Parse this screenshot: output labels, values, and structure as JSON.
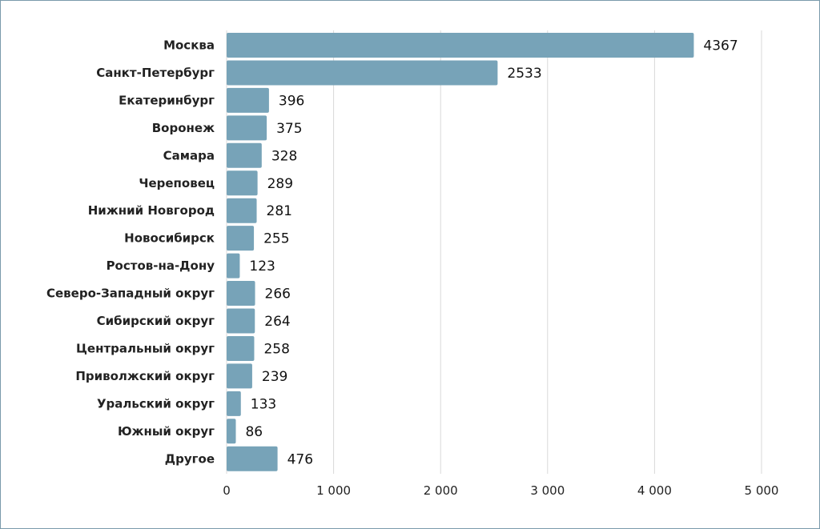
{
  "chart_data": {
    "type": "bar",
    "orientation": "horizontal",
    "categories": [
      "Москва",
      "Санкт-Петербург",
      "Екатеринбург",
      "Воронеж",
      "Самара",
      "Череповец",
      "Нижний Новгород",
      "Новосибирск",
      "Ростов-на-Дону",
      "Северо-Западный округ",
      "Сибирский округ",
      "Центральный округ",
      "Приволжский округ",
      "Уральский округ",
      "Южный округ",
      "Другое"
    ],
    "values": [
      4367,
      2533,
      396,
      375,
      328,
      289,
      281,
      255,
      123,
      266,
      264,
      258,
      239,
      133,
      86,
      476
    ],
    "value_labels": [
      "4367",
      "2533",
      "396",
      "375",
      "328",
      "289",
      "281",
      "255",
      "123",
      "266",
      "264",
      "258",
      "239",
      "133",
      "86",
      "476"
    ],
    "xlim": [
      0,
      5000
    ],
    "xticks": [
      0,
      1000,
      2000,
      3000,
      4000,
      5000
    ],
    "xtick_labels": [
      "0",
      "1 000",
      "2 000",
      "3 000",
      "4 000",
      "5 000"
    ],
    "grid": "vertical",
    "bar_color": "#77a3b8",
    "grid_color": "#d9d9d9",
    "frame_color": "#7a9aab",
    "title": "",
    "xlabel": "",
    "ylabel": ""
  }
}
